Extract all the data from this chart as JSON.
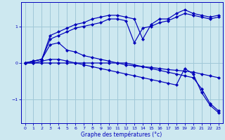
{
  "xlabel": "Graphe des températures (°c)",
  "bg_color": "#cde8f0",
  "line_color": "#0000bb",
  "grid_color": "#a0c8d8",
  "xlim": [
    -0.5,
    23.5
  ],
  "ylim": [
    -1.65,
    1.65
  ],
  "yticks": [
    -1,
    0,
    1
  ],
  "xticks": [
    0,
    1,
    2,
    3,
    4,
    5,
    6,
    7,
    8,
    9,
    10,
    11,
    12,
    13,
    14,
    15,
    16,
    17,
    18,
    19,
    20,
    21,
    22,
    23
  ],
  "line1_x": [
    0,
    1,
    2,
    3,
    4,
    5,
    6,
    7,
    8,
    9,
    10,
    11,
    12,
    13,
    14,
    15,
    16,
    17,
    18,
    19,
    20,
    21,
    22,
    23
  ],
  "line1_y": [
    0.0,
    0.05,
    0.1,
    0.75,
    0.85,
    0.95,
    1.05,
    1.1,
    1.2,
    1.25,
    1.3,
    1.3,
    1.25,
    1.2,
    0.65,
    1.05,
    1.2,
    1.2,
    1.35,
    1.45,
    1.35,
    1.3,
    1.25,
    1.3
  ],
  "line2_x": [
    0,
    1,
    2,
    3,
    4,
    5,
    6,
    7,
    8,
    9,
    10,
    11,
    12,
    13,
    14,
    15,
    16,
    17,
    18,
    19,
    20,
    21,
    22,
    23
  ],
  "line2_y": [
    0.0,
    0.05,
    0.1,
    0.65,
    0.75,
    0.85,
    0.95,
    1.0,
    1.05,
    1.1,
    1.2,
    1.2,
    1.15,
    0.55,
    0.95,
    1.0,
    1.1,
    1.15,
    1.25,
    1.35,
    1.3,
    1.25,
    1.2,
    1.25
  ],
  "line3_x": [
    0,
    1,
    2,
    3,
    4,
    5,
    6,
    7,
    8,
    9,
    10,
    11,
    12,
    13,
    14,
    15,
    16,
    17,
    18,
    19,
    20,
    21,
    22,
    23
  ],
  "line3_y": [
    0.0,
    0.05,
    0.1,
    0.5,
    0.55,
    0.35,
    0.3,
    0.2,
    0.15,
    0.1,
    0.05,
    0.0,
    -0.05,
    -0.08,
    -0.1,
    -0.12,
    -0.15,
    -0.18,
    -0.2,
    -0.22,
    -0.25,
    -0.3,
    -0.35,
    -0.4
  ],
  "line4_x": [
    0,
    1,
    2,
    3,
    4,
    5,
    6,
    7,
    8,
    9,
    10,
    11,
    12,
    13,
    14,
    15,
    16,
    17,
    18,
    19,
    20,
    21,
    22,
    23
  ],
  "line4_y": [
    0.0,
    0.0,
    0.05,
    0.1,
    0.1,
    0.05,
    0.0,
    -0.05,
    -0.1,
    -0.15,
    -0.2,
    -0.25,
    -0.3,
    -0.35,
    -0.4,
    -0.45,
    -0.5,
    -0.55,
    -0.6,
    -0.15,
    -0.3,
    -0.8,
    -1.15,
    -1.35
  ],
  "line5_x": [
    0,
    1,
    2,
    3,
    4,
    5,
    6,
    7,
    8,
    9,
    10,
    11,
    12,
    13,
    14,
    15,
    16,
    17,
    18,
    19,
    20,
    21,
    22,
    23
  ],
  "line5_y": [
    0.0,
    0.0,
    0.0,
    0.0,
    0.0,
    0.0,
    0.0,
    0.0,
    0.0,
    0.0,
    0.0,
    0.0,
    0.0,
    -0.05,
    -0.1,
    -0.15,
    -0.2,
    -0.25,
    -0.3,
    -0.35,
    -0.4,
    -0.7,
    -1.1,
    -1.3
  ]
}
